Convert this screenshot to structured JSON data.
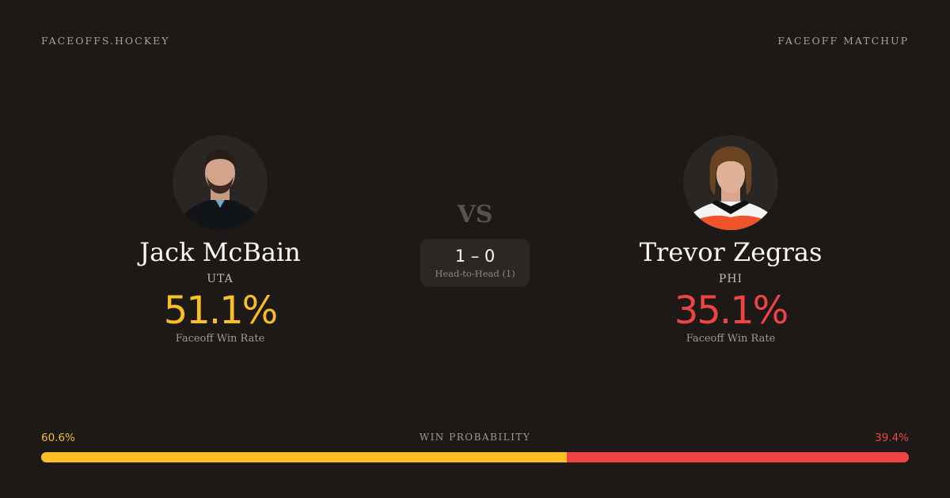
{
  "header": {
    "brand": "FACEOFFS.HOCKEY",
    "page_type": "FACEOFF MATCHUP"
  },
  "player1": {
    "name": "Jack McBain",
    "team": "UTA",
    "win_rate": "51.1%",
    "win_rate_label": "Faceoff Win Rate",
    "color": "#fbbf24",
    "icon": "player-headshot"
  },
  "player2": {
    "name": "Trevor Zegras",
    "team": "PHI",
    "win_rate": "35.1%",
    "win_rate_label": "Faceoff Win Rate",
    "color": "#ef4444",
    "icon": "player-headshot"
  },
  "matchup": {
    "vs": "VS",
    "score": "1 – 0",
    "h2h_label": "Head-to-Head (1)"
  },
  "win_probability": {
    "title": "WIN PROBABILITY",
    "left_label": "60.6%",
    "right_label": "39.4%",
    "left_value": 60.6,
    "right_value": 39.4
  }
}
